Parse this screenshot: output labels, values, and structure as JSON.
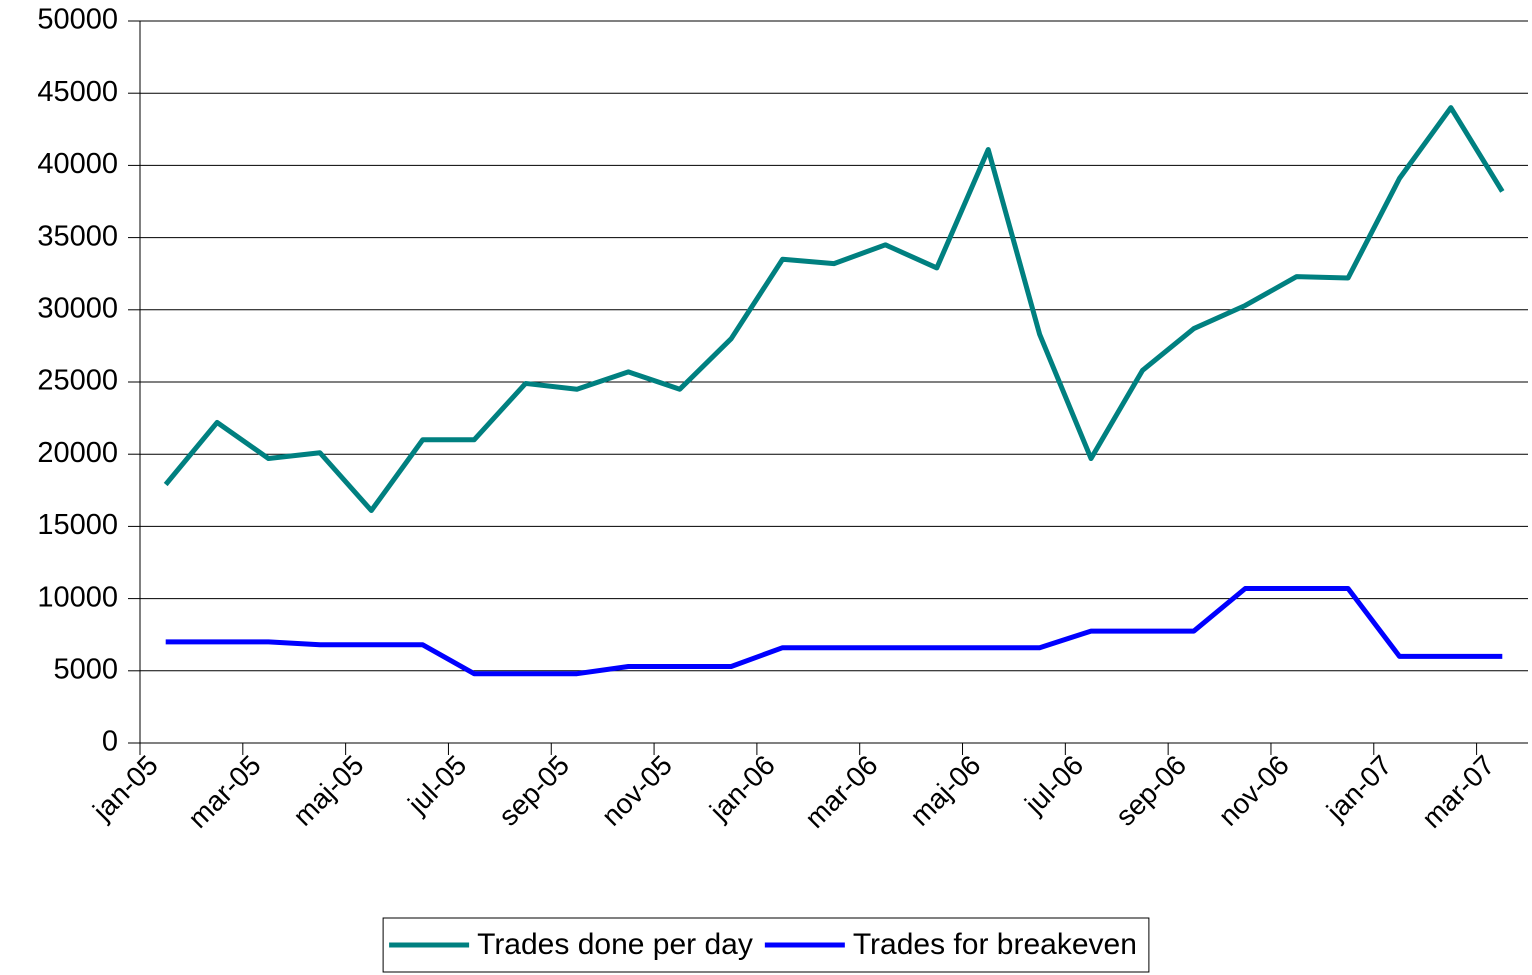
{
  "chart_data": {
    "type": "line",
    "categories": [
      "jan-05",
      null,
      "mar-05",
      null,
      "maj-05",
      null,
      "jul-05",
      null,
      "sep-05",
      null,
      "nov-05",
      null,
      "jan-06",
      null,
      "mar-06",
      null,
      "maj-06",
      null,
      "jul-06",
      null,
      "sep-06",
      null,
      "nov-06",
      null,
      "jan-07",
      null,
      "mar-07"
    ],
    "series": [
      {
        "name": "Trades done per day",
        "color": "#008080",
        "values": [
          17900,
          22200,
          19700,
          20100,
          16100,
          21000,
          21000,
          24900,
          24500,
          25700,
          24500,
          28000,
          33500,
          33200,
          34500,
          32900,
          41100,
          28300,
          19700,
          25800,
          28700,
          30300,
          32300,
          32200,
          39100,
          44000,
          38200
        ]
      },
      {
        "name": "Trades for breakeven",
        "color": "#0000ff",
        "values": [
          7000,
          7000,
          7000,
          6800,
          6800,
          6800,
          4800,
          4800,
          4800,
          5300,
          5300,
          5300,
          6600,
          6600,
          6600,
          6600,
          6600,
          6600,
          7750,
          7750,
          7750,
          10700,
          10700,
          10700,
          6000,
          6000,
          6000
        ]
      }
    ],
    "ylim": [
      0,
      50000
    ],
    "yticks": [
      0,
      5000,
      10000,
      15000,
      20000,
      25000,
      30000,
      35000,
      40000,
      45000,
      50000
    ],
    "grid": true,
    "legend": "bottom"
  }
}
